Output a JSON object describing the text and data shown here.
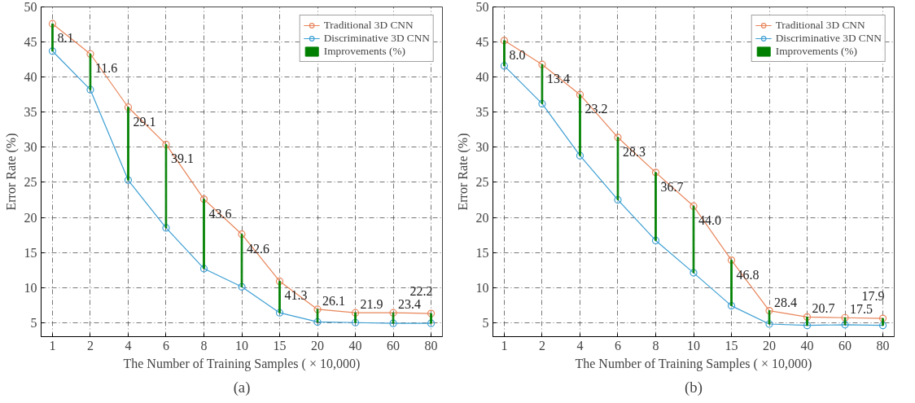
{
  "chart_data": [
    {
      "type": "line",
      "xlabel": "The Number of Training Samples ( × 10,000)",
      "ylabel": "Error Rate (%)",
      "categories": [
        "1",
        "2",
        "4",
        "6",
        "8",
        "10",
        "15",
        "20",
        "40",
        "60",
        "80"
      ],
      "ylim": [
        3,
        50
      ],
      "yticks": [
        5,
        10,
        15,
        20,
        25,
        30,
        35,
        40,
        45,
        50
      ],
      "grid": true,
      "legend": "top right",
      "marker": "circle",
      "annotations": [
        "(a)",
        {
          "text": "8.1",
          "x": "1",
          "y": 47.6
        },
        {
          "text": "11.6",
          "x": "2",
          "y": 43.3
        },
        {
          "text": "29.1",
          "x": "4",
          "y": 35.7
        },
        {
          "text": "39.1",
          "x": "6",
          "y": 30.4
        },
        {
          "text": "43.6",
          "x": "8",
          "y": 22.6
        },
        {
          "text": "42.6",
          "x": "10",
          "y": 17.6
        },
        {
          "text": "41.3",
          "x": "15",
          "y": 10.9
        },
        {
          "text": "26.1",
          "x": "20",
          "y": 6.9
        },
        {
          "text": "21.9",
          "x": "40",
          "y": 6.4
        },
        {
          "text": "23.4",
          "x": "60",
          "y": 6.4
        },
        {
          "text": "22.2",
          "x": "80",
          "y": 6.3
        }
      ],
      "series": [
        {
          "name": "Traditional 3D CNN",
          "color": "#e8855a",
          "values": [
            47.6,
            43.3,
            35.7,
            30.4,
            22.6,
            17.6,
            10.9,
            6.9,
            6.4,
            6.4,
            6.3
          ]
        },
        {
          "name": "Discriminative 3D CNN",
          "color": "#3d9fd3",
          "values": [
            43.7,
            38.2,
            25.3,
            18.5,
            12.7,
            10.1,
            6.4,
            5.1,
            5.0,
            4.9,
            4.9
          ]
        },
        {
          "name": "Improvements (%)",
          "type": "bar",
          "color": "#008000",
          "base": [
            43.7,
            38.2,
            25.3,
            18.5,
            12.7,
            10.1,
            6.4,
            5.1,
            5.0,
            4.9,
            4.9
          ],
          "values": [
            3.9,
            5.1,
            10.4,
            11.9,
            9.9,
            7.5,
            4.5,
            1.8,
            1.4,
            1.5,
            1.4
          ]
        }
      ]
    },
    {
      "type": "line",
      "xlabel": "The Number of Training Samples ( × 10,000)",
      "ylabel": "Error Rate (%)",
      "categories": [
        "1",
        "2",
        "4",
        "6",
        "8",
        "10",
        "15",
        "20",
        "40",
        "60",
        "80"
      ],
      "ylim": [
        3,
        50
      ],
      "yticks": [
        5,
        10,
        15,
        20,
        25,
        30,
        35,
        40,
        45,
        50
      ],
      "grid": true,
      "legend": "top right",
      "marker": "circle",
      "annotations": [
        "(b)",
        {
          "text": "8.0",
          "x": "1",
          "y": 45.2
        },
        {
          "text": "13.4",
          "x": "2",
          "y": 41.8
        },
        {
          "text": "23.2",
          "x": "4",
          "y": 37.5
        },
        {
          "text": "28.3",
          "x": "6",
          "y": 31.4
        },
        {
          "text": "36.7",
          "x": "8",
          "y": 26.4
        },
        {
          "text": "44.0",
          "x": "10",
          "y": 21.6
        },
        {
          "text": "46.8",
          "x": "15",
          "y": 13.9
        },
        {
          "text": "28.4",
          "x": "20",
          "y": 6.7
        },
        {
          "text": "20.7",
          "x": "40",
          "y": 5.8
        },
        {
          "text": "17.5",
          "x": "60",
          "y": 5.7
        },
        {
          "text": "17.9",
          "x": "80",
          "y": 5.6
        }
      ],
      "series": [
        {
          "name": "Traditional 3D CNN",
          "color": "#e8855a",
          "values": [
            45.2,
            41.8,
            37.5,
            31.4,
            26.4,
            21.6,
            13.9,
            6.7,
            5.8,
            5.7,
            5.6
          ]
        },
        {
          "name": "Discriminative 3D CNN",
          "color": "#3d9fd3",
          "values": [
            41.6,
            36.2,
            28.8,
            22.5,
            16.7,
            12.1,
            7.4,
            4.8,
            4.6,
            4.7,
            4.6
          ]
        },
        {
          "name": "Improvements (%)",
          "type": "bar",
          "color": "#008000",
          "base": [
            41.6,
            36.2,
            28.8,
            22.5,
            16.7,
            12.1,
            7.4,
            4.8,
            4.6,
            4.7,
            4.6
          ],
          "values": [
            3.6,
            5.6,
            8.7,
            8.9,
            9.7,
            9.5,
            6.5,
            1.9,
            1.2,
            1.0,
            1.0
          ]
        }
      ]
    }
  ]
}
